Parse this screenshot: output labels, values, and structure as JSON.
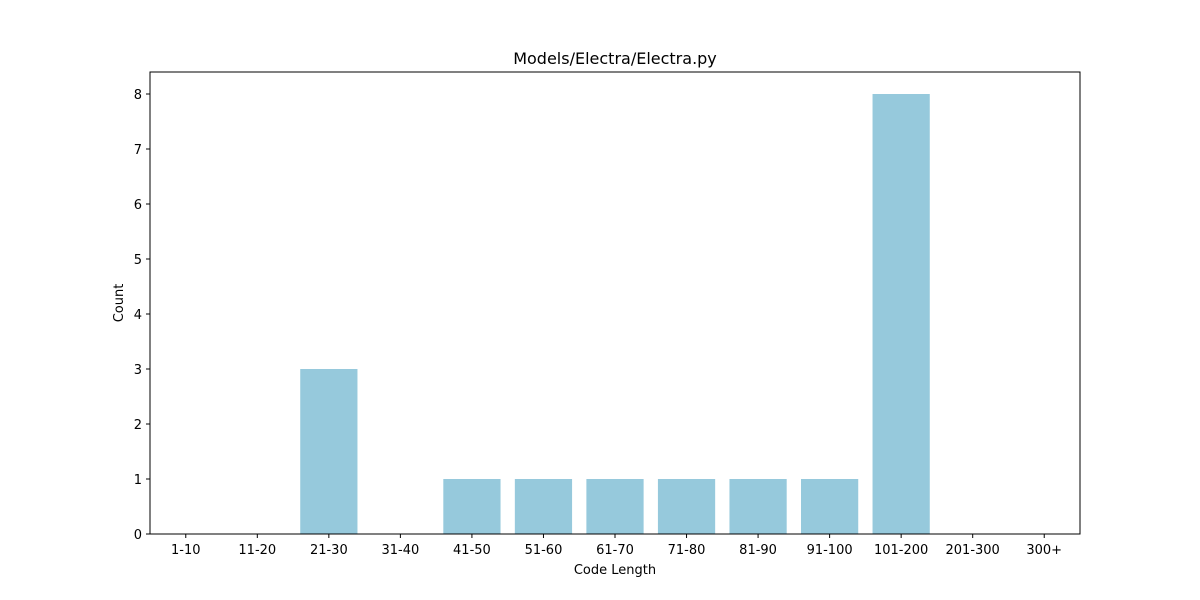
{
  "chart_data": {
    "type": "bar",
    "title": "Models/Electra/Electra.py",
    "xlabel": "Code Length",
    "ylabel": "Count",
    "categories": [
      "1-10",
      "11-20",
      "21-30",
      "31-40",
      "41-50",
      "51-60",
      "61-70",
      "71-80",
      "81-90",
      "91-100",
      "101-200",
      "201-300",
      "300+"
    ],
    "values": [
      0,
      0,
      3,
      0,
      1,
      1,
      1,
      1,
      1,
      1,
      8,
      0,
      0
    ],
    "ylim": [
      0,
      8.4
    ],
    "yticks": [
      0,
      1,
      2,
      3,
      4,
      5,
      6,
      7,
      8
    ],
    "grid": false,
    "legend": "none",
    "bar_color": "#96c9dc"
  }
}
